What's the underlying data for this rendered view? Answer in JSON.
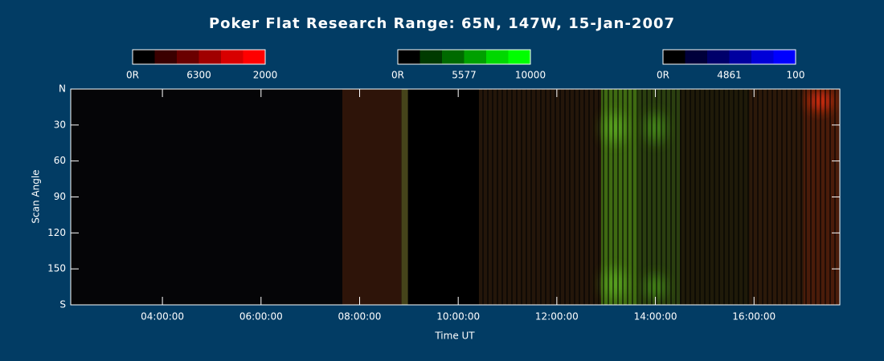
{
  "chart_data": {
    "type": "keogram",
    "title": "Poker Flat Research Range: 65N, 147W, 15-Jan-2007",
    "xlabel": "Time UT",
    "ylabel": "Scan Angle",
    "xlim": [
      2.14,
      17.74
    ],
    "ylim": [
      0,
      180
    ],
    "y_inverted": true,
    "xticks": [
      {
        "value": 4,
        "label": "04:00:00"
      },
      {
        "value": 6,
        "label": "06:00:00"
      },
      {
        "value": 8,
        "label": "08:00:00"
      },
      {
        "value": 10,
        "label": "10:00:00"
      },
      {
        "value": 12,
        "label": "12:00:00"
      },
      {
        "value": 14,
        "label": "14:00:00"
      },
      {
        "value": 16,
        "label": "16:00:00"
      }
    ],
    "yticks": [
      {
        "value": 0,
        "label": "N"
      },
      30,
      60,
      90,
      120,
      150,
      {
        "value": 180,
        "label": "S"
      }
    ],
    "colorbars": [
      {
        "labels": [
          "0R",
          "6300",
          "2000"
        ],
        "colors": [
          "#000000",
          "#3a0000",
          "#6a0000",
          "#a00000",
          "#d80000",
          "#ff0000"
        ]
      },
      {
        "labels": [
          "0R",
          "5577",
          "10000"
        ],
        "colors": [
          "#000000",
          "#003a00",
          "#006a00",
          "#00a000",
          "#00d800",
          "#00ff00"
        ]
      },
      {
        "labels": [
          "0R",
          "4861",
          "100"
        ],
        "colors": [
          "#000000",
          "#00003a",
          "#00006a",
          "#0000a0",
          "#0000d8",
          "#0000ff"
        ]
      }
    ],
    "patches": [
      {
        "t": [
          2.14,
          7.65
        ],
        "angle": [
          0,
          180
        ],
        "color": "#050507"
      },
      {
        "t": [
          7.65,
          8.85
        ],
        "angle": [
          0,
          180
        ],
        "color": "#2e1409"
      },
      {
        "t": [
          8.85,
          8.98
        ],
        "angle": [
          0,
          180
        ],
        "color": "#45441a"
      },
      {
        "t": [
          10.42,
          12.9
        ],
        "angle": [
          0,
          180
        ],
        "color": "#24160a"
      },
      {
        "t": [
          12.9,
          13.65
        ],
        "angle": [
          0,
          180
        ],
        "color": "#3f6a12"
      },
      {
        "t": [
          13.65,
          14.5
        ],
        "angle": [
          0,
          180
        ],
        "color": "#2b3f10"
      },
      {
        "t": [
          14.5,
          15.9
        ],
        "angle": [
          0,
          180
        ],
        "color": "#1f1a09"
      },
      {
        "t": [
          15.9,
          17.0
        ],
        "angle": [
          0,
          180
        ],
        "color": "#2c190a"
      },
      {
        "t": [
          17.0,
          17.74
        ],
        "angle": [
          0,
          180
        ],
        "color": "#4a1c0a"
      }
    ],
    "glows": [
      {
        "t": [
          12.95,
          13.4
        ],
        "angle": [
          20,
          45
        ],
        "color": "#5fb020"
      },
      {
        "t": [
          12.95,
          13.4
        ],
        "angle": [
          150,
          175
        ],
        "color": "#5fb020"
      },
      {
        "t": [
          13.8,
          14.2
        ],
        "angle": [
          20,
          45
        ],
        "color": "#4c9a1a"
      },
      {
        "t": [
          13.8,
          14.2
        ],
        "angle": [
          155,
          175
        ],
        "color": "#4c9a1a"
      },
      {
        "t": [
          17.1,
          17.6
        ],
        "angle": [
          2,
          18
        ],
        "color": "#ff3010"
      }
    ]
  }
}
